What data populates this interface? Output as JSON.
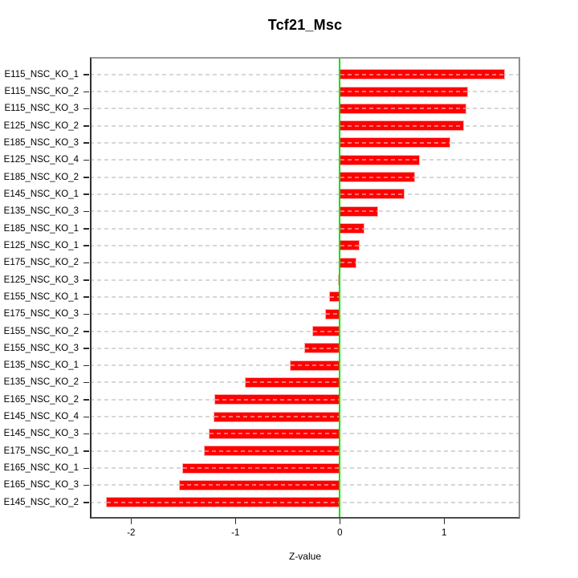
{
  "chart_data": {
    "type": "bar",
    "orientation": "horizontal",
    "title": "Tcf21_Msc",
    "xlabel": "Z-value",
    "ylabel": "",
    "categories": [
      "E115_NSC_KO_1",
      "E115_NSC_KO_2",
      "E115_NSC_KO_3",
      "E125_NSC_KO_2",
      "E185_NSC_KO_3",
      "E125_NSC_KO_4",
      "E185_NSC_KO_2",
      "E145_NSC_KO_1",
      "E135_NSC_KO_3",
      "E185_NSC_KO_1",
      "E125_NSC_KO_1",
      "E175_NSC_KO_2",
      "E125_NSC_KO_3",
      "E155_NSC_KO_1",
      "E175_NSC_KO_3",
      "E155_NSC_KO_2",
      "E155_NSC_KO_3",
      "E135_NSC_KO_1",
      "E135_NSC_KO_2",
      "E165_NSC_KO_2",
      "E145_NSC_KO_4",
      "E145_NSC_KO_3",
      "E175_NSC_KO_1",
      "E165_NSC_KO_1",
      "E165_NSC_KO_3",
      "E145_NSC_KO_2"
    ],
    "values": [
      1.58,
      1.23,
      1.21,
      1.19,
      1.06,
      0.77,
      0.72,
      0.62,
      0.37,
      0.24,
      0.19,
      0.16,
      -0.02,
      -0.1,
      -0.14,
      -0.26,
      -0.34,
      -0.48,
      -0.91,
      -1.2,
      -1.21,
      -1.26,
      -1.3,
      -1.51,
      -1.54,
      -2.24
    ],
    "xticks": [
      -2,
      -1,
      0,
      1
    ],
    "xtick_labels": [
      "-2",
      "-1",
      "0",
      "1"
    ],
    "xlim": [
      -2.395,
      1.729
    ],
    "grid": true,
    "grid_style": "dashed",
    "legend": false,
    "colors": {
      "bar_fill": "#FF0000",
      "bar_border": "#FFAAAA",
      "bar_grid_overlay": "rgba(255,255,255,0.45)",
      "zero_line": "#00E000",
      "grid_line": "#D7D7D7",
      "axis_text": "#000000",
      "background": "#FFFFFF"
    }
  }
}
